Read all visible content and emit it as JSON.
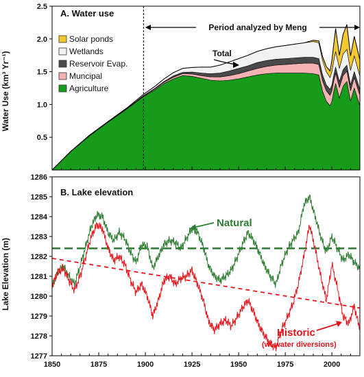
{
  "colors": {
    "agriculture": "#169B1A",
    "municipal": "#F4B3B3",
    "reservoir": "#4A4A4A",
    "wetlands": "#F2F2F2",
    "solar": "#F2C933",
    "natural": "#2E7D32",
    "historic": "#E8141B"
  },
  "chart_data": [
    {
      "type": "area",
      "panel_title": "A.  Water use",
      "ylabel": "Water Use  (km³ Yr⁻¹)",
      "ylim": [
        0,
        2.5
      ],
      "yticks": [
        "0.5",
        "1.0",
        "1.5",
        "2.0",
        "2.5"
      ],
      "xlim": [
        1850,
        2015
      ],
      "legend": [
        "Solar ponds",
        "Wetlands",
        "Reservoir Evap.",
        "Muncipal",
        "Agriculture"
      ],
      "legend_position": "top-left",
      "annotations": {
        "period": "Period analyzed by Meng",
        "period_start_x": 1899,
        "total": "Total"
      },
      "x": [
        1850,
        1860,
        1870,
        1880,
        1890,
        1899,
        1905,
        1910,
        1915,
        1920,
        1925,
        1930,
        1935,
        1940,
        1945,
        1950,
        1955,
        1960,
        1965,
        1970,
        1975,
        1980,
        1985,
        1990,
        1993,
        1995,
        1997,
        1999,
        2000,
        2001,
        2002,
        2004,
        2006,
        2008,
        2010,
        2012,
        2015
      ],
      "series": [
        {
          "name": "Agriculture",
          "values": [
            0,
            0.28,
            0.52,
            0.73,
            0.93,
            1.12,
            1.22,
            1.32,
            1.39,
            1.44,
            1.43,
            1.4,
            1.37,
            1.36,
            1.37,
            1.39,
            1.42,
            1.45,
            1.47,
            1.48,
            1.48,
            1.48,
            1.48,
            1.47,
            1.45,
            1.2,
            1.05,
            0.98,
            1.05,
            1.2,
            1.32,
            1.1,
            1.28,
            1.35,
            1.05,
            1.25,
            0.98
          ]
        },
        {
          "name": "Muncipal",
          "values": [
            0,
            0,
            0,
            0,
            0.005,
            0.01,
            0.015,
            0.02,
            0.025,
            0.03,
            0.035,
            0.04,
            0.05,
            0.06,
            0.07,
            0.08,
            0.09,
            0.1,
            0.11,
            0.12,
            0.13,
            0.14,
            0.15,
            0.16,
            0.16,
            0.16,
            0.16,
            0.16,
            0.16,
            0.16,
            0.16,
            0.16,
            0.16,
            0.16,
            0.16,
            0.16,
            0.16
          ]
        },
        {
          "name": "Reservoir Evap.",
          "values": [
            0,
            0,
            0,
            0,
            0,
            0.005,
            0.01,
            0.01,
            0.02,
            0.02,
            0.03,
            0.04,
            0.05,
            0.06,
            0.07,
            0.08,
            0.08,
            0.09,
            0.09,
            0.09,
            0.09,
            0.09,
            0.09,
            0.09,
            0.09,
            0.09,
            0.09,
            0.09,
            0.09,
            0.09,
            0.09,
            0.09,
            0.09,
            0.09,
            0.09,
            0.09,
            0.09
          ]
        },
        {
          "name": "Wetlands",
          "values": [
            0,
            0.005,
            0.01,
            0.01,
            0.01,
            0.02,
            0.03,
            0.04,
            0.05,
            0.06,
            0.07,
            0.09,
            0.1,
            0.12,
            0.14,
            0.15,
            0.16,
            0.17,
            0.18,
            0.19,
            0.2,
            0.21,
            0.22,
            0.24,
            0.24,
            0.22,
            0.2,
            0.18,
            0.2,
            0.22,
            0.24,
            0.2,
            0.24,
            0.24,
            0.22,
            0.24,
            0.2
          ]
        },
        {
          "name": "Solar ponds",
          "values": [
            0,
            0,
            0,
            0,
            0,
            0,
            0,
            0,
            0,
            0,
            0,
            0,
            0,
            0,
            0,
            0,
            0,
            0,
            0,
            0,
            0,
            0,
            0,
            0.02,
            0.03,
            0.06,
            0.08,
            0.1,
            0.18,
            0.25,
            0.35,
            0.2,
            0.3,
            0.38,
            0.22,
            0.3,
            0.25
          ]
        }
      ]
    },
    {
      "type": "line",
      "panel_title": "B.  Lake elevation",
      "ylabel": "Lake  Elevation  (m)",
      "ylim": [
        1277,
        1286
      ],
      "yticks": [
        "1277",
        "1278",
        "1279",
        "1280",
        "1281",
        "1282",
        "1283",
        "1284",
        "1285",
        "1286"
      ],
      "xlim": [
        1850,
        2015
      ],
      "xticks": [
        "1850",
        "1875",
        "1900",
        "1925",
        "1950",
        "1975",
        "2000"
      ],
      "x": [
        1850,
        1853,
        1856,
        1859,
        1862,
        1865,
        1868,
        1871,
        1874,
        1877,
        1880,
        1883,
        1886,
        1889,
        1892,
        1895,
        1898,
        1901,
        1904,
        1907,
        1910,
        1913,
        1916,
        1919,
        1922,
        1925,
        1928,
        1931,
        1934,
        1937,
        1940,
        1943,
        1946,
        1949,
        1952,
        1955,
        1958,
        1961,
        1964,
        1967,
        1970,
        1973,
        1976,
        1979,
        1982,
        1985,
        1988,
        1991,
        1994,
        1997,
        2000,
        2003,
        2006,
        2009,
        2012,
        2015
      ],
      "series": [
        {
          "name": "Natural",
          "values": [
            1280.5,
            1281.2,
            1281.5,
            1281.0,
            1280.6,
            1281.5,
            1282.5,
            1283.5,
            1284.1,
            1284.0,
            1283.2,
            1282.8,
            1283.2,
            1282.9,
            1282.2,
            1281.7,
            1282.6,
            1282.5,
            1281.4,
            1282.0,
            1282.6,
            1282.8,
            1282.7,
            1282.4,
            1282.9,
            1283.4,
            1283.2,
            1282.5,
            1281.5,
            1281.0,
            1280.8,
            1281.0,
            1281.3,
            1281.9,
            1282.6,
            1283.2,
            1282.8,
            1282.2,
            1281.5,
            1281.0,
            1280.6,
            1281.6,
            1282.3,
            1282.8,
            1283.2,
            1284.6,
            1285.0,
            1284.0,
            1283.0,
            1282.2,
            1283.0,
            1282.4,
            1281.8,
            1282.1,
            1281.7,
            1281.4
          ]
        },
        {
          "name": "Historic",
          "values": [
            1280.5,
            1281.2,
            1281.4,
            1280.8,
            1280.3,
            1281.0,
            1282.0,
            1283.0,
            1283.6,
            1283.4,
            1282.4,
            1281.8,
            1282.0,
            1281.6,
            1280.8,
            1280.2,
            1280.6,
            1280.0,
            1279.0,
            1279.8,
            1280.8,
            1281.0,
            1280.6,
            1280.9,
            1281.0,
            1281.3,
            1280.6,
            1279.8,
            1278.7,
            1278.3,
            1278.6,
            1278.8,
            1278.5,
            1278.9,
            1279.4,
            1279.8,
            1279.2,
            1278.5,
            1278.0,
            1277.6,
            1277.4,
            1278.3,
            1278.9,
            1279.6,
            1280.6,
            1282.0,
            1283.6,
            1282.4,
            1281.0,
            1279.8,
            1281.6,
            1280.4,
            1279.0,
            1278.6,
            1279.5,
            1278.3
          ]
        }
      ],
      "mean_natural": 1282.4,
      "trend_line": {
        "from": [
          1850,
          1281.9
        ],
        "to": [
          2015,
          1279.4
        ]
      },
      "annotations": {
        "natural": "Natural",
        "historic": "Historic",
        "historic_sub": "(w/ water diversions)"
      }
    }
  ]
}
